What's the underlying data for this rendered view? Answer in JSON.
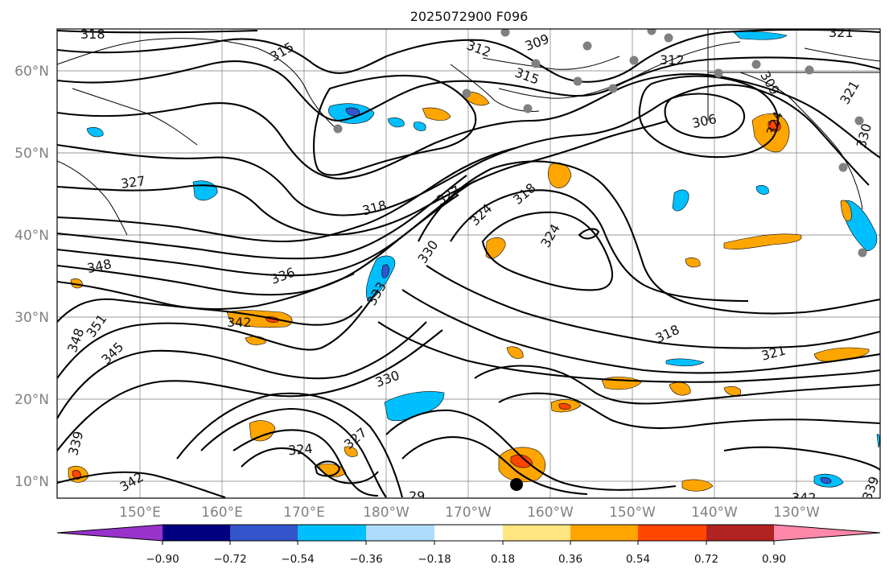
{
  "figure": {
    "title": "2025072900 F096",
    "latitude_ticks": [
      "10°N",
      "20°N",
      "30°N",
      "40°N",
      "50°N",
      "60°N"
    ],
    "longitude_ticks": [
      "150°E",
      "160°E",
      "170°E",
      "180°W",
      "170°W",
      "160°W",
      "150°W",
      "140°W",
      "130°W"
    ]
  },
  "contour_labels": [
    "318",
    "315",
    "309",
    "312",
    "315",
    "312",
    "321",
    "309",
    "321",
    "330",
    "306",
    "327",
    "318",
    "327",
    "324",
    "318",
    "324",
    "330",
    "348",
    "336",
    "333",
    "351",
    "348",
    "342",
    "345",
    "318",
    "321",
    "330",
    "339",
    "324",
    "327",
    "342",
    "29",
    "339",
    "342",
    "324"
  ],
  "colorbar": {
    "ticks": [
      "−0.90",
      "−0.72",
      "−0.54",
      "−0.36",
      "−0.18",
      "0.18",
      "0.36",
      "0.54",
      "0.72",
      "0.90"
    ],
    "colors": [
      "#9933cc",
      "#000080",
      "#3355cc",
      "#00bfff",
      "#aedcfc",
      "#ffffff",
      "#ffe680",
      "#ffa500",
      "#ff4500",
      "#b22222",
      "#ff88aa"
    ]
  },
  "colors": {
    "orange": "#ffa500",
    "red": "#ff4500",
    "light_blue": "#00bfff",
    "blue": "#3355cc",
    "station": "#808080"
  }
}
